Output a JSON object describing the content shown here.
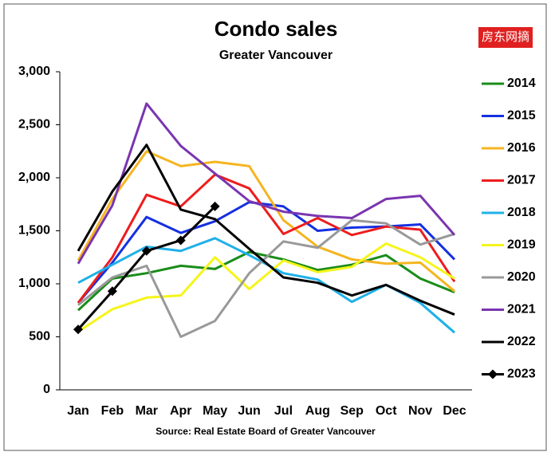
{
  "chart_data": {
    "type": "line",
    "title": "Condo sales",
    "subtitle": "Greater Vancouver",
    "source": "Source: Real Estate Board of Greater Vancouver",
    "watermark": "房东网摘",
    "categories": [
      "Jan",
      "Feb",
      "Mar",
      "Apr",
      "May",
      "Jun",
      "Jul",
      "Aug",
      "Sep",
      "Oct",
      "Nov",
      "Dec"
    ],
    "ylim": [
      0,
      3000
    ],
    "yticks": [
      0,
      500,
      {
        "value": 1000,
        "label": "1,000"
      },
      {
        "value": 1500,
        "label": "1,500"
      },
      {
        "value": 2000,
        "label": "2,000"
      },
      {
        "value": 2500,
        "label": "2,500"
      },
      {
        "value": 3000,
        "label": "3,000"
      }
    ],
    "grid": false,
    "legend": "right",
    "series": [
      {
        "name": "2014",
        "color": "#1a8c1a",
        "values": [
          750,
          1050,
          1100,
          1170,
          1140,
          1300,
          1230,
          1130,
          1180,
          1270,
          1050,
          920
        ]
      },
      {
        "name": "2015",
        "color": "#1530e0",
        "values": [
          820,
          1200,
          1630,
          1480,
          1590,
          1770,
          1730,
          1500,
          1530,
          1540,
          1560,
          1230
        ]
      },
      {
        "name": "2016",
        "color": "#f5b520",
        "values": [
          1220,
          1800,
          2250,
          2110,
          2150,
          2110,
          1600,
          1350,
          1230,
          1190,
          1200,
          930
        ]
      },
      {
        "name": "2017",
        "color": "#ee1c1c",
        "values": [
          820,
          1250,
          1840,
          1730,
          2030,
          1900,
          1470,
          1620,
          1460,
          1540,
          1510,
          1020
        ]
      },
      {
        "name": "2018",
        "color": "#1fb0e8",
        "values": [
          1010,
          1180,
          1350,
          1310,
          1430,
          1270,
          1100,
          1040,
          830,
          990,
          820,
          540
        ]
      },
      {
        "name": "2019",
        "color": "#f5f51a",
        "values": [
          550,
          760,
          870,
          890,
          1250,
          950,
          1220,
          1110,
          1160,
          1380,
          1250,
          1050
        ]
      },
      {
        "name": "2020",
        "color": "#999999",
        "values": [
          800,
          1060,
          1170,
          500,
          650,
          1100,
          1400,
          1340,
          1600,
          1570,
          1370,
          1470
        ]
      },
      {
        "name": "2021",
        "color": "#7a35b0",
        "values": [
          1190,
          1740,
          2700,
          2300,
          2040,
          1780,
          1680,
          1640,
          1620,
          1800,
          1830,
          1460
        ]
      },
      {
        "name": "2022",
        "color": "#000000",
        "values": [
          1310,
          1870,
          2310,
          1700,
          1610,
          1330,
          1060,
          1010,
          890,
          990,
          840,
          710
        ]
      },
      {
        "name": "2023",
        "color": "#000000",
        "marker": "diamond",
        "values": [
          570,
          930,
          1310,
          1410,
          1730,
          null,
          null,
          null,
          null,
          null,
          null,
          null
        ]
      }
    ]
  }
}
